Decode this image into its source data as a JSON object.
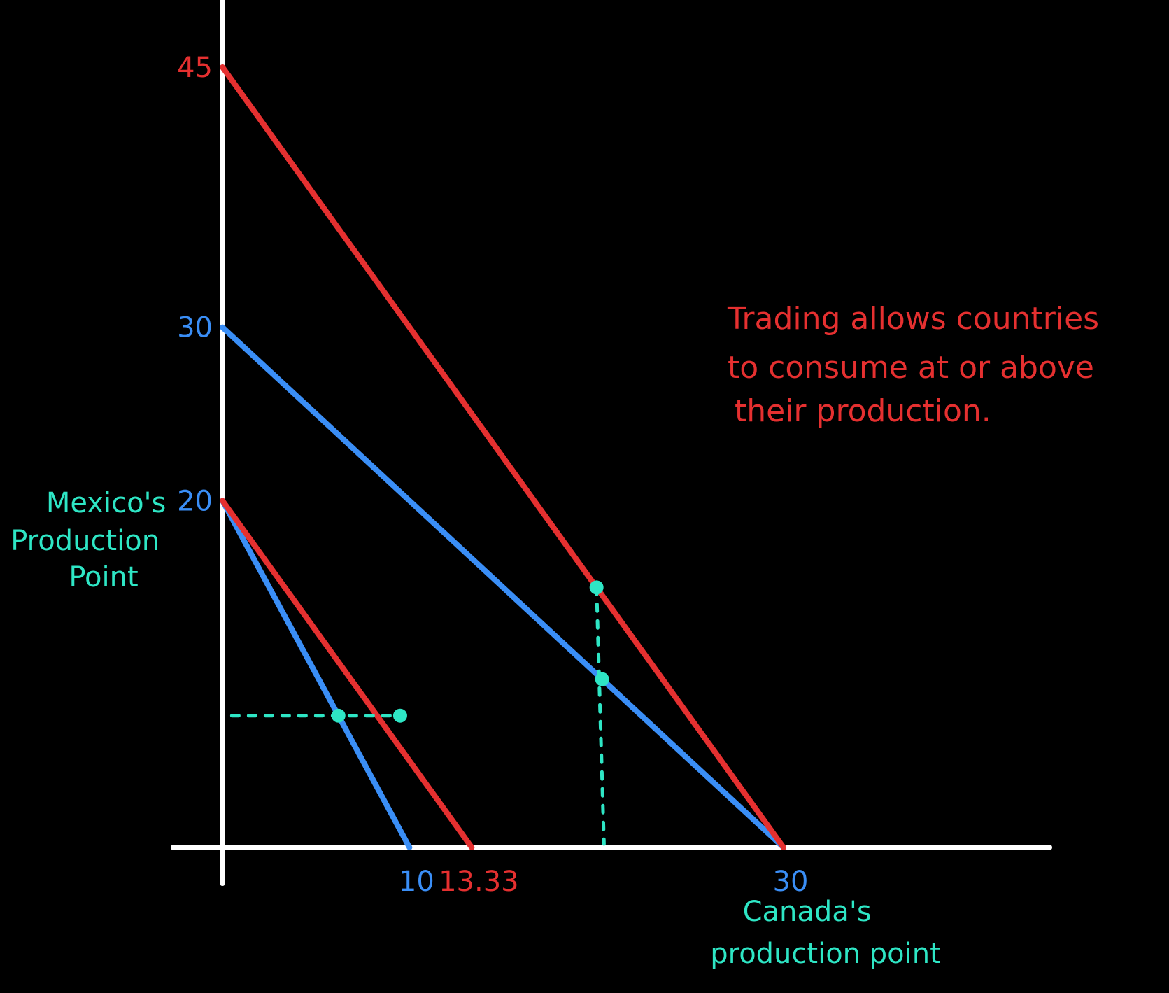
{
  "chart_data": {
    "type": "line",
    "title": "",
    "xlabel": "",
    "ylabel": "",
    "xlim": [
      0,
      30
    ],
    "ylim": [
      0,
      45
    ],
    "grid": false,
    "colors": {
      "background": "#000000",
      "axis": "#ffffff",
      "ppf": "#3a8ef6",
      "trade": "#e53030",
      "marker": "#2ee6c5"
    },
    "series": [
      {
        "key": "canada_ppf",
        "color": "#3a8ef6",
        "points": [
          [
            0,
            30
          ],
          [
            30,
            0
          ]
        ]
      },
      {
        "key": "canada_trade",
        "color": "#e53030",
        "points": [
          [
            0,
            45
          ],
          [
            30,
            0
          ]
        ]
      },
      {
        "key": "mexico_ppf",
        "color": "#3a8ef6",
        "points": [
          [
            0,
            20
          ],
          [
            10,
            0
          ]
        ]
      },
      {
        "key": "mexico_trade",
        "color": "#e53030",
        "points": [
          [
            0,
            20
          ],
          [
            13.33,
            0
          ]
        ]
      }
    ],
    "y_ticks": [
      {
        "value": 45,
        "text": "45",
        "color": "#e53030"
      },
      {
        "value": 30,
        "text": "30",
        "color": "#3a8ef6"
      },
      {
        "value": 20,
        "text": "20",
        "color": "#3a8ef6"
      }
    ],
    "x_ticks": [
      {
        "value": 10,
        "text": "10",
        "color": "#3a8ef6"
      },
      {
        "value": 13.33,
        "text": "13.33",
        "color": "#e53030"
      },
      {
        "value": 30,
        "text": "30",
        "color": "#3a8ef6"
      }
    ],
    "markers": [
      {
        "key": "mexico_production",
        "x": 6.2,
        "y": 7.6
      },
      {
        "key": "mexico_consumption",
        "x": 9.5,
        "y": 7.6
      },
      {
        "key": "canada_production",
        "x": 20.3,
        "y": 9.7
      },
      {
        "key": "canada_consumption",
        "x": 20.0,
        "y": 15.0
      }
    ],
    "guides": [
      {
        "key": "mexico_guide",
        "from": [
          0.5,
          7.6
        ],
        "to": [
          9.5,
          7.6
        ]
      },
      {
        "key": "canada_guide",
        "from": [
          20.0,
          15.0
        ],
        "to": [
          20.4,
          0.2
        ]
      }
    ],
    "annotations": {
      "trade_note": [
        "Trading allows countries",
        "to consume at or above",
        "their production."
      ],
      "mexico_label": [
        "Mexico's",
        "Production",
        "Point"
      ],
      "canada_label": [
        "Canada's",
        "production point"
      ]
    }
  }
}
